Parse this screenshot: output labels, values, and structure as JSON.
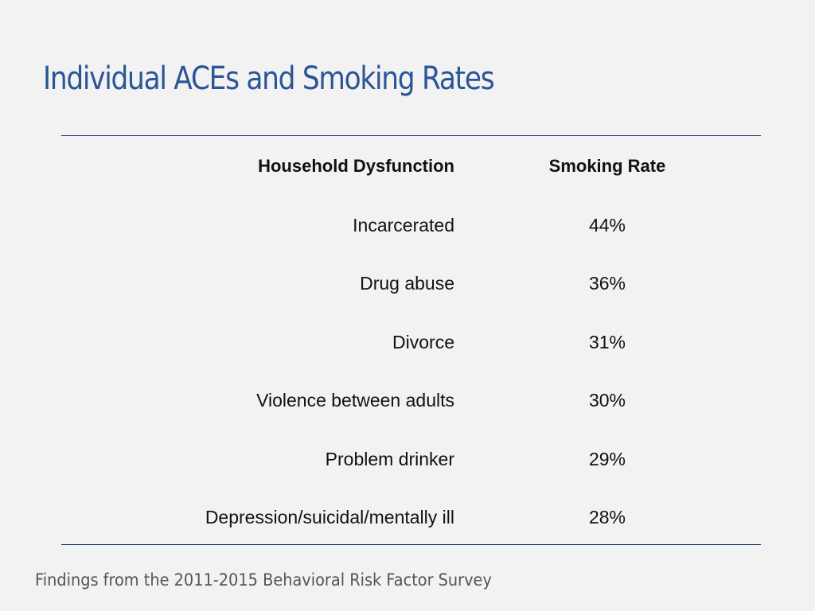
{
  "title": "Individual ACEs and Smoking Rates",
  "table": {
    "header": [
      "Household Dysfunction",
      "Smoking Rate"
    ],
    "rows": [
      [
        "Incarcerated",
        "44%"
      ],
      [
        "Drug abuse",
        "36%"
      ],
      [
        "Divorce",
        "31%"
      ],
      [
        "Violence between adults",
        "30%"
      ],
      [
        "Problem drinker",
        "29%"
      ],
      [
        "Depression/suicidal/mentally ill",
        "28%"
      ]
    ]
  },
  "footer": "Findings from the 2011-2015 Behavioral Risk Factor Survey"
}
